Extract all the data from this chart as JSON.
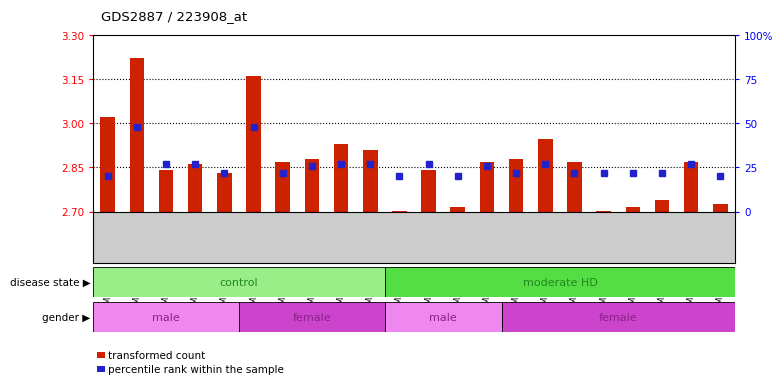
{
  "title": "GDS2887 / 223908_at",
  "samples": [
    "GSM217771",
    "GSM217772",
    "GSM217773",
    "GSM217774",
    "GSM217775",
    "GSM217766",
    "GSM217767",
    "GSM217768",
    "GSM217769",
    "GSM217770",
    "GSM217784",
    "GSM217785",
    "GSM217786",
    "GSM217787",
    "GSM217776",
    "GSM217777",
    "GSM217778",
    "GSM217779",
    "GSM217780",
    "GSM217781",
    "GSM217782",
    "GSM217783"
  ],
  "bar_values": [
    3.02,
    3.22,
    2.84,
    2.86,
    2.83,
    3.16,
    2.87,
    2.88,
    2.93,
    2.91,
    2.703,
    2.84,
    2.715,
    2.87,
    2.88,
    2.945,
    2.87,
    2.703,
    2.715,
    2.74,
    2.87,
    2.725
  ],
  "percentile_pct": [
    20,
    48,
    27,
    27,
    22,
    48,
    22,
    26,
    27,
    27,
    20,
    27,
    20,
    26,
    22,
    27,
    22,
    22,
    22,
    22,
    27,
    20
  ],
  "ymin": 2.7,
  "ymax": 3.3,
  "yticks_left": [
    2.7,
    2.85,
    3.0,
    3.15,
    3.3
  ],
  "yticks_right": [
    0,
    25,
    50,
    75,
    100
  ],
  "hlines": [
    2.85,
    3.0,
    3.15
  ],
  "bar_color": "#cc2200",
  "dot_color": "#2222cc",
  "disease_state_groups": [
    {
      "label": "control",
      "start": 0,
      "end": 10,
      "color": "#99ee88"
    },
    {
      "label": "moderate HD",
      "start": 10,
      "end": 22,
      "color": "#55dd44"
    }
  ],
  "gender_groups": [
    {
      "label": "male",
      "start": 0,
      "end": 5,
      "color": "#ee88ee"
    },
    {
      "label": "female",
      "start": 5,
      "end": 10,
      "color": "#cc44cc"
    },
    {
      "label": "male",
      "start": 10,
      "end": 14,
      "color": "#ee88ee"
    },
    {
      "label": "female",
      "start": 14,
      "end": 22,
      "color": "#cc44cc"
    }
  ],
  "xtick_bg": "#cccccc",
  "plot_bg": "#ffffff",
  "disease_label_color": "#228822",
  "gender_label_color": "#882288"
}
